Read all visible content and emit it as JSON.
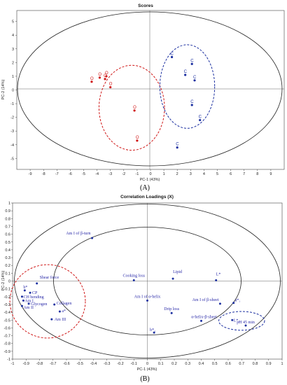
{
  "chart_data": [
    {
      "panel": "A",
      "type": "scatter",
      "title": "Scores",
      "xlabel": "PC-1 (43%)",
      "ylabel": "PC-2 (14%)",
      "xlim": [
        -10,
        10
      ],
      "ylim": [
        -5.8,
        5.8
      ],
      "xticks": [
        -9,
        -8,
        -7,
        -6,
        -5,
        -4,
        -3,
        -2,
        -1,
        0,
        1,
        2,
        3,
        4,
        5,
        6,
        7,
        8,
        9
      ],
      "yticks": [
        5,
        4,
        3,
        2,
        1,
        0,
        -1,
        -2,
        -3,
        -4,
        -5
      ],
      "series": [
        {
          "label": "O",
          "color": "#d01818",
          "points": [
            [
              -4.4,
              0.6
            ],
            [
              -3.8,
              0.9
            ],
            [
              -3.4,
              0.8
            ],
            [
              -3.3,
              1.0
            ],
            [
              -3.0,
              0.2
            ],
            [
              -1.2,
              -1.5
            ],
            [
              -1.0,
              -3.7
            ]
          ]
        },
        {
          "label": "C",
          "color": "#1b2fa0",
          "points": [
            [
              1.6,
              2.4
            ],
            [
              2.6,
              1.1
            ],
            [
              3.1,
              1.9
            ],
            [
              3.3,
              0.7
            ],
            [
              3.1,
              -1.1
            ],
            [
              3.7,
              -2.2
            ],
            [
              2.0,
              -4.2
            ]
          ]
        }
      ],
      "caption": "(A)"
    },
    {
      "panel": "B",
      "type": "scatter",
      "title": "Correlation Loadings (X)",
      "xlabel": "PC-1 (43%)",
      "ylabel": "PC-2 (14%)",
      "xlim": [
        -1.0,
        1.0
      ],
      "ylim": [
        -1.0,
        1.0
      ],
      "xticks": [
        -1,
        -0.9,
        -0.8,
        -0.7,
        -0.6,
        -0.5,
        -0.4,
        -0.3,
        -0.2,
        -0.1,
        0,
        0.1,
        0.2,
        0.3,
        0.4,
        0.5,
        0.6,
        0.7,
        0.8,
        0.9,
        1
      ],
      "yticks": [
        1,
        0.9,
        0.8,
        0.7,
        0.6,
        0.5,
        0.4,
        0.3,
        0.2,
        0.1,
        0,
        -0.1,
        -0.2,
        -0.3,
        -0.4,
        -0.5,
        -0.6,
        -0.7,
        -0.8,
        -0.9,
        -1
      ],
      "points": [
        {
          "label": "Am I of β-turn",
          "x": -0.41,
          "y": 0.55
        },
        {
          "label": "Lipid",
          "x": 0.19,
          "y": 0.03
        },
        {
          "label": "Cooking loss",
          "x": -0.1,
          "y": 0.01
        },
        {
          "label": "L*",
          "x": 0.51,
          "y": 0.01
        },
        {
          "label": "Shear force",
          "x": -0.82,
          "y": -0.03
        },
        {
          "label": "b*",
          "x": -0.91,
          "y": -0.12
        },
        {
          "label": "CP",
          "x": -0.87,
          "y": -0.15
        },
        {
          "label": "CH bending",
          "x": -0.93,
          "y": -0.2
        },
        {
          "label": "Am I",
          "x": -0.92,
          "y": -0.25
        },
        {
          "label": "Glycogen",
          "x": -0.88,
          "y": -0.29
        },
        {
          "label": "Collagen",
          "x": -0.69,
          "y": -0.3
        },
        {
          "label": "Am II",
          "x": -0.93,
          "y": -0.32
        },
        {
          "label": "a*",
          "x": -0.65,
          "y": -0.39
        },
        {
          "label": "Am III",
          "x": -0.71,
          "y": -0.49
        },
        {
          "label": "Am I of α-helix",
          "x": 0.0,
          "y": -0.25
        },
        {
          "label": "Drip loss",
          "x": 0.18,
          "y": -0.41
        },
        {
          "label": "Am I of β-sheet",
          "x": 0.54,
          "y": -0.29
        },
        {
          "label": "a*₁",
          "x": 0.64,
          "y": -0.28
        },
        {
          "label": "α-helix-β-sheet",
          "x": 0.4,
          "y": -0.51
        },
        {
          "label": "L*₁",
          "x": 0.63,
          "y": -0.5
        },
        {
          "label": "b*₁",
          "x": 0.05,
          "y": -0.66
        },
        {
          "label": "pH 45 min",
          "x": 0.73,
          "y": -0.57
        }
      ],
      "caption": "(B)"
    }
  ]
}
